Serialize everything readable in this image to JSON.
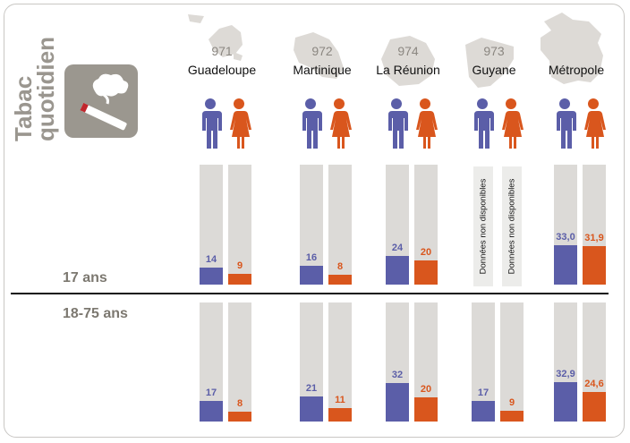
{
  "title": {
    "line1": "Tabac",
    "line2": "quotidien"
  },
  "colors": {
    "men": "#5b5ea8",
    "women": "#d9561d",
    "bar_bg": "#dcdad7",
    "map": "#dddad6",
    "text_grey": "#9a968f"
  },
  "icons": {
    "badge": "smoking-cigarette-icon",
    "men": "man-icon",
    "women": "woman-icon"
  },
  "regions": [
    {
      "code": "971",
      "name": "Guadeloupe"
    },
    {
      "code": "972",
      "name": "Martinique"
    },
    {
      "code": "974",
      "name": "La Réunion"
    },
    {
      "code": "973",
      "name": "Guyane"
    },
    {
      "code": "",
      "name": "Métropole"
    }
  ],
  "age_groups": [
    "17 ans",
    "18-75 ans"
  ],
  "not_available_label": "Données non disponibles",
  "chart_data": {
    "type": "bar",
    "title": "Tabac quotidien",
    "unit": "%",
    "ylim": [
      0,
      100
    ],
    "categories": [
      "Guadeloupe",
      "Martinique",
      "La Réunion",
      "Guyane",
      "Métropole"
    ],
    "groups": [
      {
        "name": "17 ans",
        "series": [
          {
            "name": "Hommes",
            "values": [
              14,
              16,
              24,
              null,
              33.0
            ],
            "labels": [
              "14",
              "16",
              "24",
              null,
              "33,0"
            ]
          },
          {
            "name": "Femmes",
            "values": [
              9,
              8,
              20,
              null,
              31.9
            ],
            "labels": [
              "9",
              "8",
              "20",
              null,
              "31,9"
            ]
          }
        ]
      },
      {
        "name": "18-75 ans",
        "series": [
          {
            "name": "Hommes",
            "values": [
              17,
              21,
              32,
              17,
              32.9
            ],
            "labels": [
              "17",
              "21",
              "32",
              "17",
              "32,9"
            ]
          },
          {
            "name": "Femmes",
            "values": [
              8,
              11,
              20,
              9,
              24.6
            ],
            "labels": [
              "8",
              "11",
              "20",
              "9",
              "24,6"
            ]
          }
        ]
      }
    ]
  }
}
